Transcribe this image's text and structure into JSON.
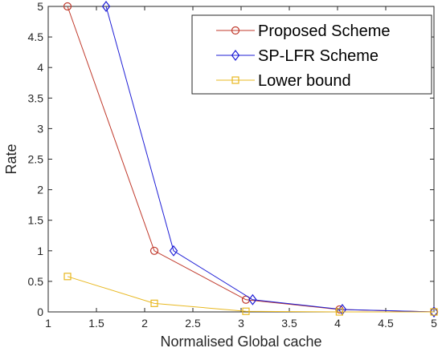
{
  "chart_data": {
    "type": "line",
    "xlabel": "Normalised Global cache",
    "ylabel": "Rate",
    "xlim": [
      1,
      5
    ],
    "ylim": [
      0,
      5
    ],
    "x_ticks": [
      "1",
      "1.5",
      "2",
      "2.5",
      "3",
      "3.5",
      "4",
      "4.5",
      "5"
    ],
    "y_ticks": [
      "0",
      "0.5",
      "1",
      "1.5",
      "2",
      "2.5",
      "3",
      "3.5",
      "4",
      "4.5",
      "5"
    ],
    "grid": false,
    "legend_position": "top-right",
    "series": [
      {
        "name": "Proposed Scheme",
        "marker": "circle",
        "color": "#C0392B",
        "points": [
          [
            1.2,
            5.0
          ],
          [
            2.1,
            1.0
          ],
          [
            3.05,
            0.2
          ],
          [
            4.02,
            0.04
          ],
          [
            5.0,
            0.0
          ]
        ]
      },
      {
        "name": "SP-LFR Scheme",
        "marker": "diamond",
        "color": "#1F1FD6",
        "points": [
          [
            1.6,
            5.0
          ],
          [
            2.3,
            1.0
          ],
          [
            3.12,
            0.2
          ],
          [
            4.05,
            0.04
          ],
          [
            5.0,
            0.0
          ]
        ]
      },
      {
        "name": "Lower bound",
        "marker": "square",
        "color": "#E8B820",
        "points": [
          [
            1.2,
            0.58
          ],
          [
            2.1,
            0.14
          ],
          [
            3.05,
            0.01
          ],
          [
            4.02,
            0.0
          ],
          [
            5.0,
            0.0
          ]
        ]
      }
    ]
  }
}
